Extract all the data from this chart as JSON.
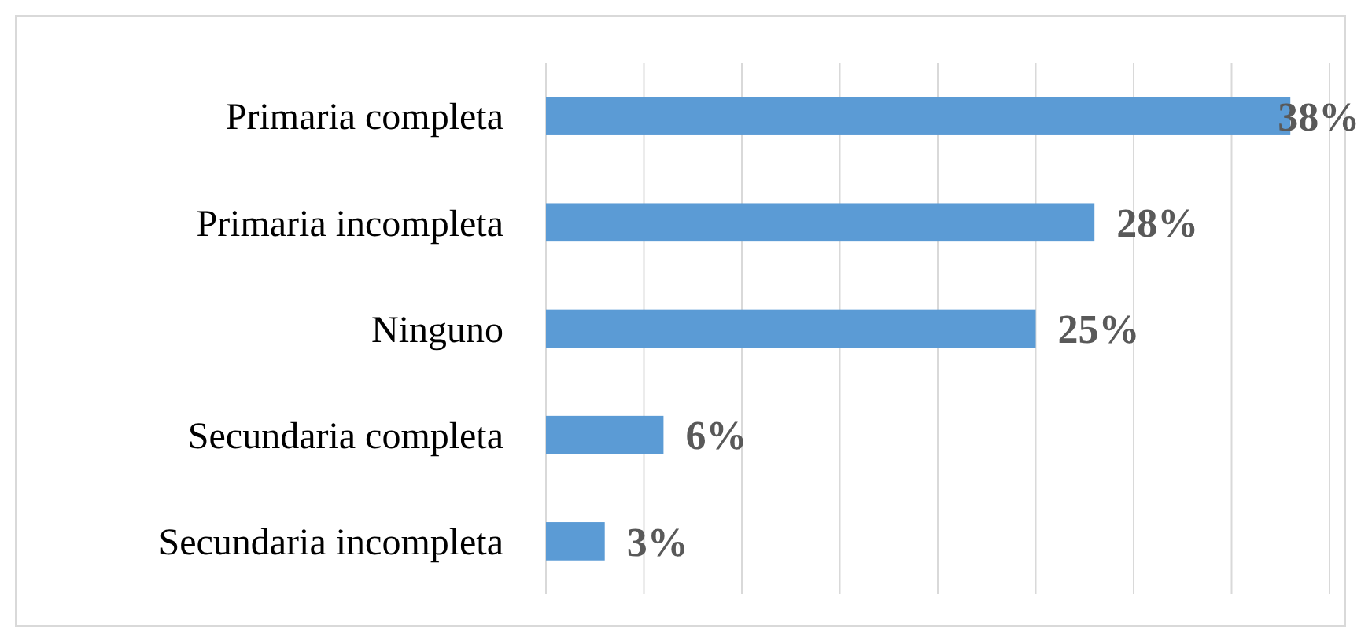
{
  "chart_data": {
    "type": "bar",
    "orientation": "horizontal",
    "categories": [
      "Primaria completa",
      "Primaria incompleta",
      "Ninguno",
      "Secundaria completa",
      "Secundaria incompleta"
    ],
    "values": [
      38,
      28,
      25,
      6,
      3
    ],
    "value_labels": [
      "38%",
      "28%",
      "25%",
      "6%",
      "3%"
    ],
    "color": "#5b9bd5",
    "xlim": [
      0,
      40
    ],
    "xticks": [
      {
        "value": 0,
        "label": null
      },
      {
        "value": 5,
        "label": null
      },
      {
        "value": 10,
        "label": null
      },
      {
        "value": 15,
        "label": null
      },
      {
        "value": 20,
        "label": null
      },
      {
        "value": 25,
        "label": null
      },
      {
        "value": 30,
        "label": null
      },
      {
        "value": 35,
        "label": null
      },
      {
        "value": 40,
        "label": null
      }
    ],
    "grid": "x",
    "tick_labels": "y"
  }
}
